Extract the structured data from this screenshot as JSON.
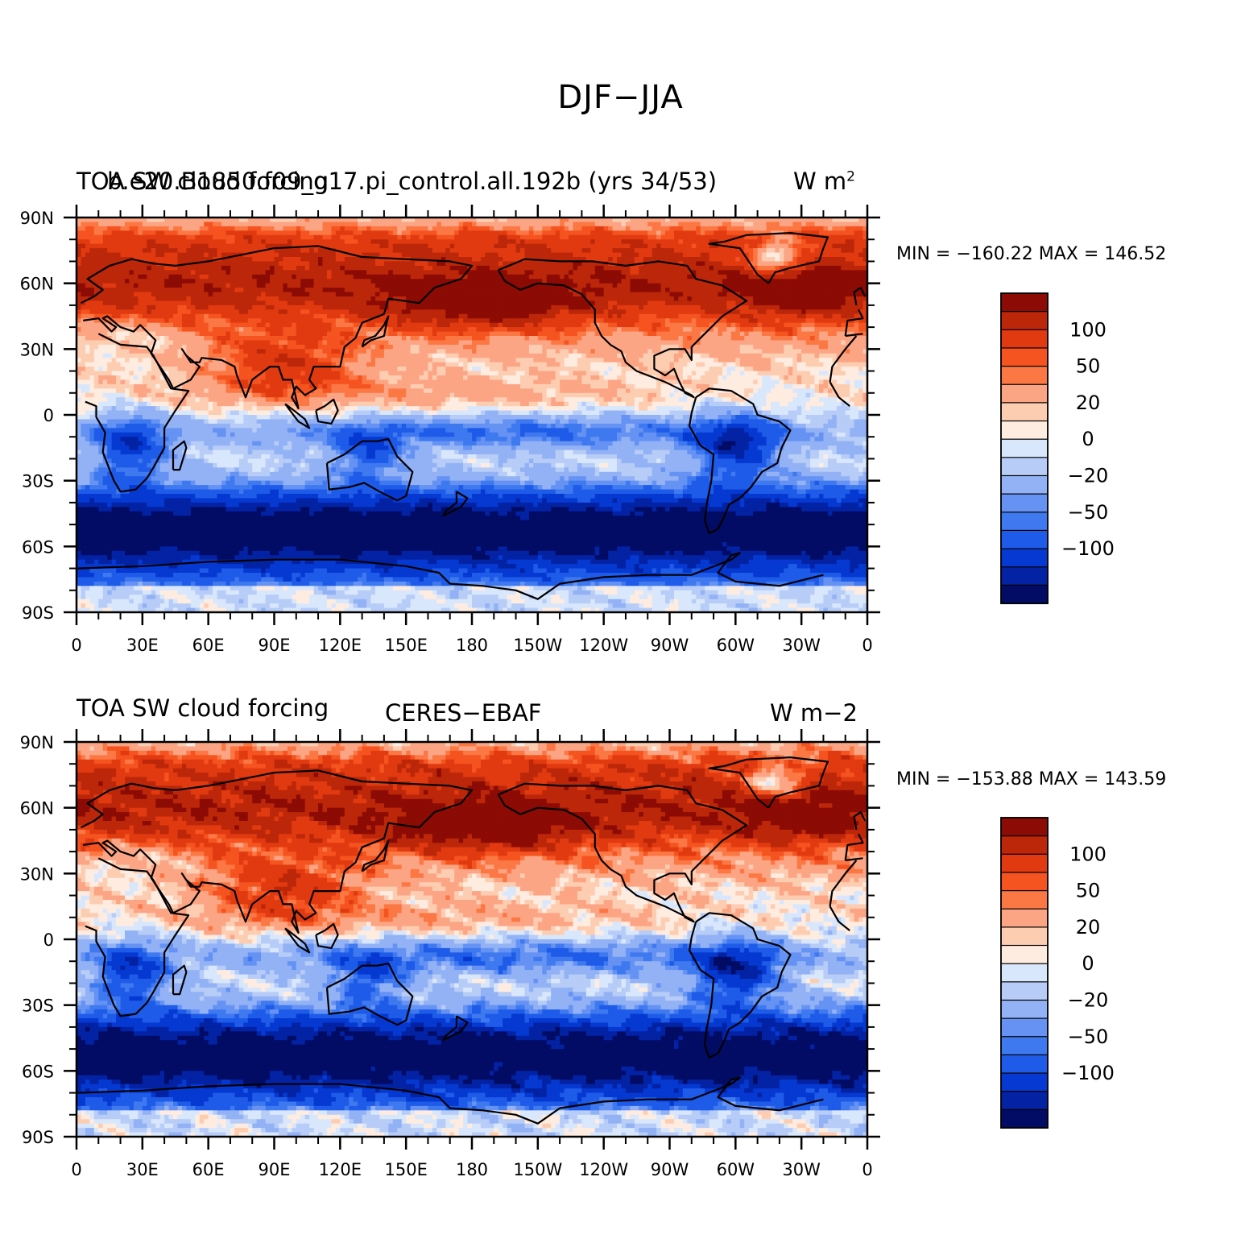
{
  "figure": {
    "title": "DJF−JJA"
  },
  "panels": [
    {
      "left_title": "TOA SW cloud forcing",
      "center_title": "b.e20.B1850.f09_g17.pi_control.all.192b (yrs 34∕53)",
      "units": "W m",
      "units_exponent": "2",
      "min_max": "MIN = −160.22  MAX = 146.52"
    },
    {
      "left_title": "TOA SW cloud forcing",
      "center_title": "CERES−EBAF",
      "units": "W m−2",
      "units_exponent": "",
      "min_max": "MIN = −153.88  MAX = 143.59"
    }
  ],
  "axes": {
    "lat_ticks": [
      "90N",
      "60N",
      "30N",
      "0",
      "30S",
      "60S",
      "90S"
    ],
    "lon_ticks": [
      "0",
      "30E",
      "60E",
      "90E",
      "120E",
      "150E",
      "180",
      "150W",
      "120W",
      "90W",
      "60W",
      "30W",
      "0"
    ]
  },
  "colorbar": {
    "labels": [
      "100",
      "50",
      "20",
      "0",
      "−20",
      "−50",
      "−100"
    ],
    "levels": [
      -150,
      -120,
      -100,
      -80,
      -60,
      -50,
      -40,
      -20,
      -10,
      0,
      10,
      20,
      40,
      50,
      60,
      80,
      100,
      120,
      150
    ],
    "colors": [
      "#020c64",
      "#0322a4",
      "#0539d1",
      "#1e5be8",
      "#3f79f0",
      "#6592f3",
      "#92b2f5",
      "#b7ccf7",
      "#d9e7fc",
      "#ffece0",
      "#fdcdb2",
      "#fca585",
      "#fb7844",
      "#f55320",
      "#e23a10",
      "#bc270a",
      "#8c0b04"
    ]
  },
  "chart_data": {
    "type": "heatmap",
    "title": "DJF−JJA",
    "xlabel": "",
    "ylabel": "",
    "x_range": [
      "0",
      "0"
    ],
    "y_range": [
      "90S",
      "90N"
    ],
    "series": [
      {
        "name": "b.e20.B1850.f09_g17.pi_control.all.192b (yrs 34∕53)",
        "min": -160.22,
        "max": 146.52
      },
      {
        "name": "CERES−EBAF",
        "min": -153.88,
        "max": 143.59
      }
    ]
  }
}
